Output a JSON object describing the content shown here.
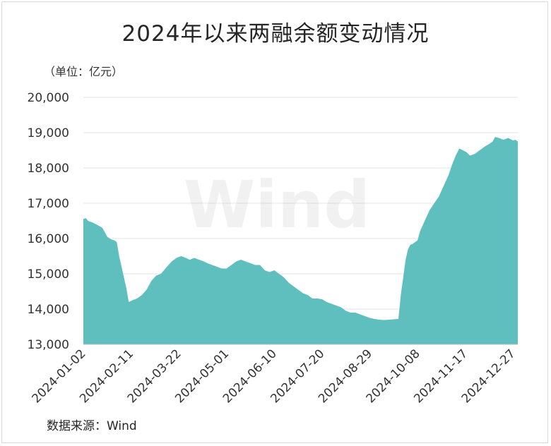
{
  "title": "2024年以来两融余额变动情况",
  "unit_label": "（单位：亿元）",
  "source_label": "数据来源：Wind",
  "watermark": "Wind",
  "colors": {
    "area": "#5fbfbf",
    "grid": "#e3e3e3",
    "axis": "#bfbfbf"
  },
  "chart_data": {
    "type": "area",
    "title": "2024年以来两融余额变动情况",
    "ylabel": "（单位：亿元）",
    "xlabel": "",
    "ylim": [
      13000,
      20000
    ],
    "y_ticks": [
      "13,000",
      "14,000",
      "15,000",
      "16,000",
      "17,000",
      "18,000",
      "19,000",
      "20,000"
    ],
    "y_tick_values": [
      13000,
      14000,
      15000,
      16000,
      17000,
      18000,
      19000,
      20000
    ],
    "x_ticks": [
      "2024-01-02",
      "2024-02-11",
      "2024-03-22",
      "2024-05-01",
      "2024-06-10",
      "2024-07-20",
      "2024-08-29",
      "2024-10-08",
      "2024-11-17",
      "2024-12-27"
    ],
    "grid": true,
    "legend": "none",
    "series": [
      {
        "x": [
          "2024-01-02",
          "2024-01-04",
          "2024-01-06",
          "2024-01-10",
          "2024-01-14",
          "2024-01-18",
          "2024-01-22",
          "2024-01-25",
          "2024-01-28",
          "2024-01-30",
          "2024-02-01",
          "2024-02-03",
          "2024-02-05",
          "2024-02-07",
          "2024-02-09",
          "2024-02-12",
          "2024-02-16",
          "2024-02-20",
          "2024-02-24",
          "2024-02-28",
          "2024-03-03",
          "2024-03-07",
          "2024-03-12",
          "2024-03-16",
          "2024-03-20",
          "2024-03-24",
          "2024-03-28",
          "2024-03-31",
          "2024-04-04",
          "2024-04-08",
          "2024-04-12",
          "2024-04-15",
          "2024-04-19",
          "2024-04-23",
          "2024-04-27",
          "2024-05-01",
          "2024-05-05",
          "2024-05-09",
          "2024-05-13",
          "2024-05-17",
          "2024-05-21",
          "2024-05-25",
          "2024-05-29",
          "2024-06-02",
          "2024-06-06",
          "2024-06-10",
          "2024-06-14",
          "2024-06-18",
          "2024-06-22",
          "2024-06-26",
          "2024-06-30",
          "2024-07-04",
          "2024-07-08",
          "2024-07-12",
          "2024-07-16",
          "2024-07-20",
          "2024-07-24",
          "2024-07-28",
          "2024-08-01",
          "2024-08-05",
          "2024-08-09",
          "2024-08-13",
          "2024-08-17",
          "2024-08-21",
          "2024-08-25",
          "2024-08-29",
          "2024-09-02",
          "2024-09-06",
          "2024-09-10",
          "2024-09-14",
          "2024-09-18",
          "2024-09-22",
          "2024-09-24",
          "2024-09-26",
          "2024-09-28",
          "2024-09-30",
          "2024-10-02",
          "2024-10-04",
          "2024-10-06",
          "2024-10-08",
          "2024-10-10",
          "2024-10-14",
          "2024-10-18",
          "2024-10-22",
          "2024-10-26",
          "2024-10-30",
          "2024-11-03",
          "2024-11-06",
          "2024-11-09",
          "2024-11-12",
          "2024-11-15",
          "2024-11-18",
          "2024-11-21",
          "2024-11-25",
          "2024-11-29",
          "2024-12-03",
          "2024-12-07",
          "2024-12-10",
          "2024-12-12",
          "2024-12-15",
          "2024-12-19",
          "2024-12-23",
          "2024-12-27",
          "2024-12-29",
          "2024-12-31"
        ],
        "values": [
          16550,
          16580,
          16500,
          16450,
          16380,
          16300,
          16050,
          15980,
          15950,
          15900,
          15500,
          15200,
          14900,
          14600,
          14200,
          14250,
          14300,
          14400,
          14550,
          14800,
          14950,
          15000,
          15200,
          15350,
          15450,
          15500,
          15450,
          15400,
          15450,
          15400,
          15350,
          15300,
          15250,
          15200,
          15150,
          15150,
          15250,
          15350,
          15400,
          15350,
          15300,
          15250,
          15250,
          15100,
          15050,
          15100,
          15000,
          14900,
          14750,
          14650,
          14550,
          14450,
          14400,
          14300,
          14300,
          14280,
          14200,
          14150,
          14100,
          14050,
          13950,
          13900,
          13900,
          13850,
          13800,
          13750,
          13720,
          13700,
          13690,
          13700,
          13710,
          13720,
          14400,
          14900,
          15400,
          15700,
          15820,
          15850,
          15900,
          15950,
          16200,
          16500,
          16800,
          17000,
          17200,
          17500,
          17800,
          18100,
          18350,
          18550,
          18500,
          18450,
          18350,
          18400,
          18500,
          18600,
          18680,
          18750,
          18880,
          18850,
          18800,
          18850,
          18780,
          18800,
          18750
        ]
      }
    ]
  }
}
